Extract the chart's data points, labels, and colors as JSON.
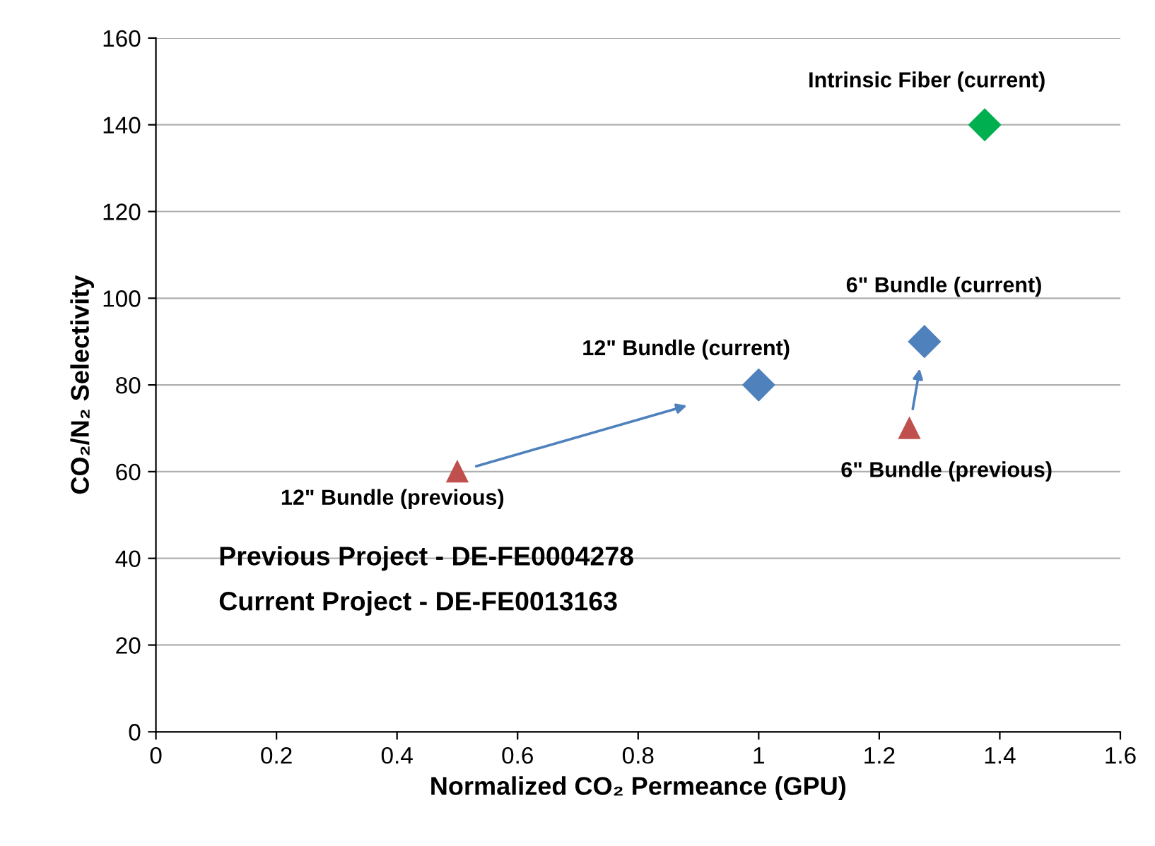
{
  "chart_data": {
    "type": "scatter",
    "xlabel": "Normalized CO₂ Permeance (GPU)",
    "ylabel": "CO₂/N₂ Selectivity",
    "series": [
      {
        "color": "#c0504d",
        "marker": "triangle",
        "x": [
          0.5,
          1.25
        ],
        "values": [
          60,
          70
        ]
      },
      {
        "color": "#4f81bd",
        "marker": "diamond",
        "x": [
          1.0,
          1.275
        ],
        "values": [
          80,
          90
        ]
      },
      {
        "color": "#00b050",
        "marker": "diamond",
        "x": [
          1.375
        ],
        "values": [
          140
        ]
      }
    ],
    "annotations": [
      {
        "text": "12\" Bundle (previous)",
        "x": 0.5,
        "y": 60
      },
      {
        "text": "6\" Bundle (previous)",
        "x": 1.25,
        "y": 70
      },
      {
        "text": "12\" Bundle (current)",
        "x": 1.0,
        "y": 80
      },
      {
        "text": "6\" Bundle (current)",
        "x": 1.275,
        "y": 90
      },
      {
        "text": "Intrinsic Fiber (current)",
        "x": 1.375,
        "y": 140
      },
      "Previous Project - DE-FE0004278",
      "Current Project - DE-FE0013163"
    ],
    "xlim": [
      0,
      1.6
    ],
    "xticks": [
      0,
      0.2,
      0.4,
      0.6,
      0.8,
      1,
      1.2,
      1.4,
      1.6
    ],
    "ylim": [
      0,
      160
    ],
    "yticks": [
      0,
      20,
      40,
      60,
      80,
      100,
      120,
      140,
      160
    ],
    "grid": "y",
    "legend": false
  }
}
